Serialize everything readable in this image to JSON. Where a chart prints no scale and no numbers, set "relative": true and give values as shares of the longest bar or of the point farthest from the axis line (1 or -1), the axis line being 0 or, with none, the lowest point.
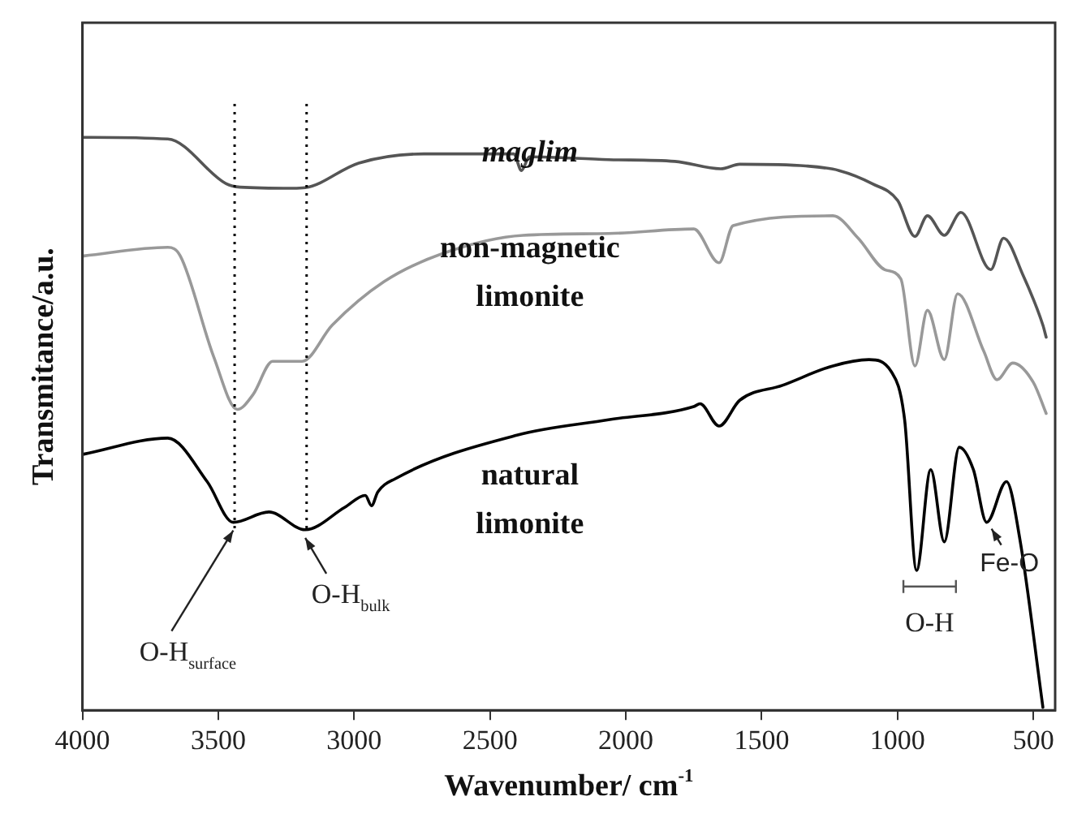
{
  "chart_data": {
    "type": "line",
    "xlabel": "Wavenumber/ cm$^{-1}$",
    "ylabel": "Transmitance/a.u.",
    "relative": true,
    "xlim": [
      4000,
      420
    ],
    "xticks": [
      4000,
      3500,
      3000,
      2500,
      2000,
      1500,
      1000,
      500
    ],
    "legend": false,
    "grid": false,
    "marker": "none",
    "line_style": "solid",
    "series": [
      {
        "name": "maglim",
        "color": "#555555",
        "x": [
          3995,
          3686,
          3471,
          3420,
          3227,
          3180,
          2983,
          2744,
          2413,
          2384,
          2355,
          2064,
          1820,
          1651,
          1581,
          1337,
          1215,
          1093,
          1000,
          936,
          890,
          828,
          767,
          657,
          610,
          538,
          465,
          453
        ],
        "values": [
          1.0,
          0.997,
          0.919,
          0.913,
          0.911,
          0.912,
          0.955,
          0.971,
          0.971,
          0.942,
          0.966,
          0.961,
          0.958,
          0.945,
          0.953,
          0.95,
          0.942,
          0.919,
          0.89,
          0.827,
          0.863,
          0.829,
          0.869,
          0.769,
          0.824,
          0.759,
          0.672,
          0.651
        ]
      },
      {
        "name": "non-magnetic limonite",
        "color": "#999999",
        "x": [
          3995,
          3686,
          3640,
          3517,
          3430,
          3372,
          3300,
          3192,
          3081,
          2890,
          2669,
          2378,
          2064,
          1750,
          1657,
          1605,
          1238,
          1145,
          1047,
          988,
          936,
          890,
          828,
          779,
          683,
          634,
          576,
          500,
          453
        ],
        "values": [
          0.793,
          0.808,
          0.793,
          0.617,
          0.525,
          0.551,
          0.609,
          0.609,
          0.672,
          0.748,
          0.798,
          0.829,
          0.832,
          0.84,
          0.781,
          0.846,
          0.863,
          0.824,
          0.769,
          0.753,
          0.601,
          0.698,
          0.612,
          0.727,
          0.627,
          0.577,
          0.606,
          0.572,
          0.518
        ]
      },
      {
        "name": "natural limonite",
        "color": "#000000",
        "x": [
          3995,
          3686,
          3541,
          3445,
          3314,
          3180,
          3035,
          2959,
          2936,
          2913,
          2849,
          2401,
          2064,
          1750,
          1727,
          1657,
          1581,
          1424,
          1238,
          1105,
          1023,
          974,
          930,
          878,
          828,
          773,
          721,
          672,
          599,
          550,
          465
        ],
        "values": [
          0.447,
          0.475,
          0.399,
          0.328,
          0.346,
          0.315,
          0.354,
          0.375,
          0.357,
          0.381,
          0.404,
          0.48,
          0.507,
          0.53,
          0.535,
          0.496,
          0.541,
          0.567,
          0.601,
          0.612,
          0.591,
          0.507,
          0.244,
          0.42,
          0.294,
          0.459,
          0.42,
          0.328,
          0.399,
          0.299,
          0.005
        ]
      }
    ],
    "ref_lines": [
      {
        "axis": "x",
        "value": 3440,
        "line_style": "dotted",
        "color": "#000000"
      },
      {
        "axis": "x",
        "value": 3175,
        "line_style": "dotted",
        "color": "#000000"
      }
    ],
    "annotations": [
      {
        "text": "O-H$_{surface}$",
        "x": 3445,
        "y": 0.328
      },
      {
        "text": "O-H$_{bulk}$",
        "x": 3180,
        "y": 0.315
      },
      "O-H",
      {
        "text": "Fe-O",
        "x": 672,
        "y": 0.328
      }
    ]
  }
}
